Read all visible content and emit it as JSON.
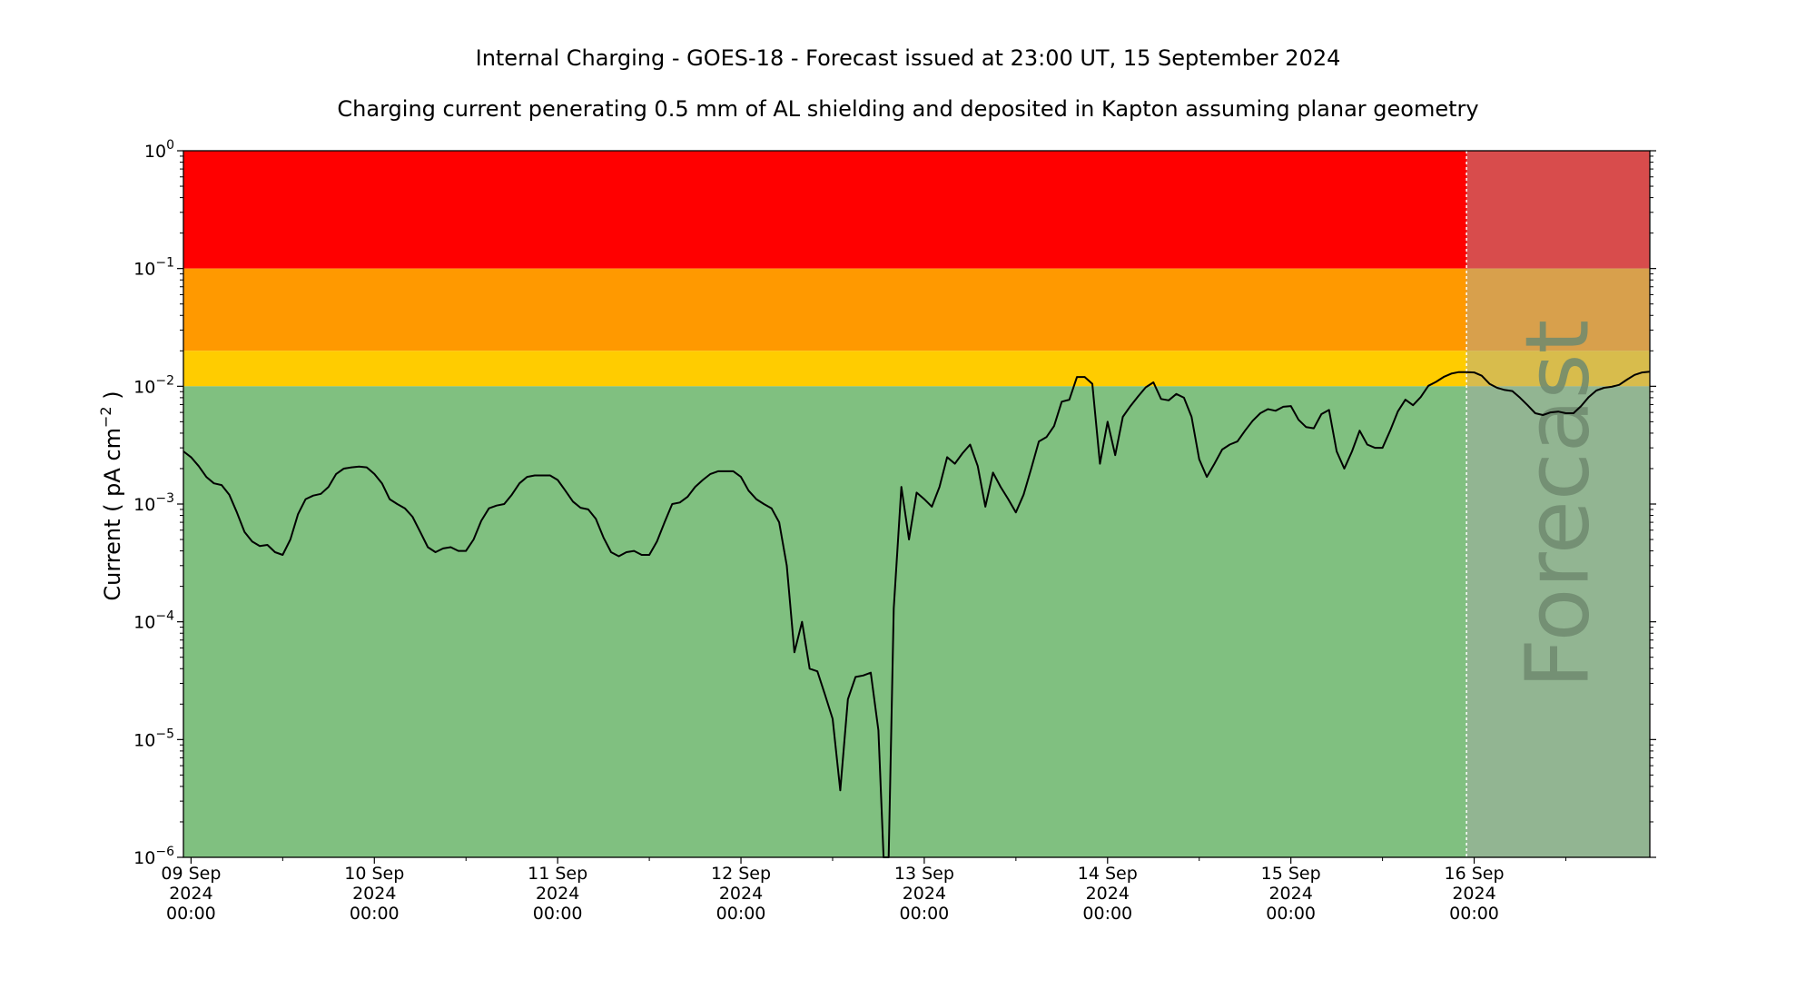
{
  "chart_data": {
    "type": "line",
    "title": "Internal Charging - GOES-18 - Forecast issued at 23:00 UT, 15 September 2024",
    "subtitle": "Charging current penerating 0.5 mm of AL shielding and deposited in Kapton assuming planar geometry",
    "ylabel": "Current ( pA cm",
    "ylabel_sup": "−2",
    "ylabel_close": " )",
    "yscale": "log",
    "ylim": [
      1e-06,
      1
    ],
    "xlim": [
      "2024-09-08 23:00",
      "2024-09-16 23:00"
    ],
    "x_ticks": [
      {
        "x": "2024-09-09 00:00",
        "day": "09 Sep",
        "year": "2024",
        "time": "00:00"
      },
      {
        "x": "2024-09-10 00:00",
        "day": "10 Sep",
        "year": "2024",
        "time": "00:00"
      },
      {
        "x": "2024-09-11 00:00",
        "day": "11 Sep",
        "year": "2024",
        "time": "00:00"
      },
      {
        "x": "2024-09-12 00:00",
        "day": "12 Sep",
        "year": "2024",
        "time": "00:00"
      },
      {
        "x": "2024-09-13 00:00",
        "day": "13 Sep",
        "year": "2024",
        "time": "00:00"
      },
      {
        "x": "2024-09-14 00:00",
        "day": "14 Sep",
        "year": "2024",
        "time": "00:00"
      },
      {
        "x": "2024-09-15 00:00",
        "day": "15 Sep",
        "year": "2024",
        "time": "00:00"
      },
      {
        "x": "2024-09-16 00:00",
        "day": "16 Sep",
        "year": "2024",
        "time": "00:00"
      }
    ],
    "y_ticks": [
      {
        "value": 1,
        "base": "10",
        "exp": "0"
      },
      {
        "value": 0.1,
        "base": "10",
        "exp": "−1"
      },
      {
        "value": 0.01,
        "base": "10",
        "exp": "−2"
      },
      {
        "value": 0.001,
        "base": "10",
        "exp": "−3"
      },
      {
        "value": 0.0001,
        "base": "10",
        "exp": "−4"
      },
      {
        "value": 1e-05,
        "base": "10",
        "exp": "−5"
      },
      {
        "value": 1e-06,
        "base": "10",
        "exp": "−6"
      }
    ],
    "bands": [
      {
        "from": 0.1,
        "to": 1,
        "color": "#ff0000"
      },
      {
        "from": 0.02,
        "to": 0.1,
        "color": "#ff9900"
      },
      {
        "from": 0.01,
        "to": 0.02,
        "color": "#ffcc00"
      },
      {
        "from": 1e-06,
        "to": 0.01,
        "color": "#80c080"
      }
    ],
    "forecast": {
      "start": "2024-09-15 23:00",
      "label": "Forecast",
      "overlay_color": "#a9a9a9",
      "overlay_opacity": 0.45
    },
    "series": [
      {
        "color": "#000000",
        "points": [
          [
            "2024-09-08 23:00",
            0.0028
          ],
          [
            "2024-09-09 00:00",
            0.0025
          ],
          [
            "2024-09-09 01:00",
            0.0021
          ],
          [
            "2024-09-09 02:00",
            0.0017
          ],
          [
            "2024-09-09 03:00",
            0.0015
          ],
          [
            "2024-09-09 04:00",
            0.00145
          ],
          [
            "2024-09-09 05:00",
            0.0012
          ],
          [
            "2024-09-09 06:00",
            0.00085
          ],
          [
            "2024-09-09 07:00",
            0.00058
          ],
          [
            "2024-09-09 08:00",
            0.00048
          ],
          [
            "2024-09-09 09:00",
            0.00044
          ],
          [
            "2024-09-09 10:00",
            0.00045
          ],
          [
            "2024-09-09 11:00",
            0.00039
          ],
          [
            "2024-09-09 12:00",
            0.00037
          ],
          [
            "2024-09-09 13:00",
            0.0005
          ],
          [
            "2024-09-09 14:00",
            0.00082
          ],
          [
            "2024-09-09 15:00",
            0.0011
          ],
          [
            "2024-09-09 16:00",
            0.00118
          ],
          [
            "2024-09-09 17:00",
            0.00122
          ],
          [
            "2024-09-09 18:00",
            0.0014
          ],
          [
            "2024-09-09 19:00",
            0.0018
          ],
          [
            "2024-09-09 20:00",
            0.002
          ],
          [
            "2024-09-09 21:00",
            0.00205
          ],
          [
            "2024-09-09 22:00",
            0.00208
          ],
          [
            "2024-09-09 23:00",
            0.00205
          ],
          [
            "2024-09-10 00:00",
            0.0018
          ],
          [
            "2024-09-10 01:00",
            0.0015
          ],
          [
            "2024-09-10 02:00",
            0.0011
          ],
          [
            "2024-09-10 03:00",
            0.001
          ],
          [
            "2024-09-10 04:00",
            0.00092
          ],
          [
            "2024-09-10 05:00",
            0.00078
          ],
          [
            "2024-09-10 06:00",
            0.00058
          ],
          [
            "2024-09-10 07:00",
            0.00043
          ],
          [
            "2024-09-10 08:00",
            0.00039
          ],
          [
            "2024-09-10 09:00",
            0.00042
          ],
          [
            "2024-09-10 10:00",
            0.00043
          ],
          [
            "2024-09-10 11:00",
            0.0004
          ],
          [
            "2024-09-10 12:00",
            0.0004
          ],
          [
            "2024-09-10 13:00",
            0.0005
          ],
          [
            "2024-09-10 14:00",
            0.00072
          ],
          [
            "2024-09-10 15:00",
            0.00092
          ],
          [
            "2024-09-10 16:00",
            0.00097
          ],
          [
            "2024-09-10 17:00",
            0.001
          ],
          [
            "2024-09-10 18:00",
            0.0012
          ],
          [
            "2024-09-10 19:00",
            0.0015
          ],
          [
            "2024-09-10 20:00",
            0.0017
          ],
          [
            "2024-09-10 21:00",
            0.00175
          ],
          [
            "2024-09-10 22:00",
            0.00175
          ],
          [
            "2024-09-10 23:00",
            0.00175
          ],
          [
            "2024-09-11 00:00",
            0.0016
          ],
          [
            "2024-09-11 01:00",
            0.0013
          ],
          [
            "2024-09-11 02:00",
            0.00105
          ],
          [
            "2024-09-11 03:00",
            0.00093
          ],
          [
            "2024-09-11 04:00",
            0.0009
          ],
          [
            "2024-09-11 05:00",
            0.00075
          ],
          [
            "2024-09-11 06:00",
            0.00052
          ],
          [
            "2024-09-11 07:00",
            0.00039
          ],
          [
            "2024-09-11 08:00",
            0.00036
          ],
          [
            "2024-09-11 09:00",
            0.00039
          ],
          [
            "2024-09-11 10:00",
            0.0004
          ],
          [
            "2024-09-11 11:00",
            0.00037
          ],
          [
            "2024-09-11 12:00",
            0.00037
          ],
          [
            "2024-09-11 13:00",
            0.00048
          ],
          [
            "2024-09-11 14:00",
            0.0007
          ],
          [
            "2024-09-11 15:00",
            0.001
          ],
          [
            "2024-09-11 16:00",
            0.00103
          ],
          [
            "2024-09-11 17:00",
            0.00115
          ],
          [
            "2024-09-11 18:00",
            0.0014
          ],
          [
            "2024-09-11 19:00",
            0.0016
          ],
          [
            "2024-09-11 20:00",
            0.0018
          ],
          [
            "2024-09-11 21:00",
            0.0019
          ],
          [
            "2024-09-11 22:00",
            0.0019
          ],
          [
            "2024-09-11 23:00",
            0.0019
          ],
          [
            "2024-09-12 00:00",
            0.0017
          ],
          [
            "2024-09-12 01:00",
            0.0013
          ],
          [
            "2024-09-12 02:00",
            0.0011
          ],
          [
            "2024-09-12 03:00",
            0.001
          ],
          [
            "2024-09-12 04:00",
            0.00092
          ],
          [
            "2024-09-12 05:00",
            0.0007
          ],
          [
            "2024-09-12 06:00",
            0.0003
          ],
          [
            "2024-09-12 07:00",
            5.5e-05
          ],
          [
            "2024-09-12 08:00",
            0.0001
          ],
          [
            "2024-09-12 09:00",
            4e-05
          ],
          [
            "2024-09-12 10:00",
            3.8e-05
          ],
          [
            "2024-09-12 11:00",
            2.4e-05
          ],
          [
            "2024-09-12 12:00",
            1.5e-05
          ],
          [
            "2024-09-12 13:00",
            3.7e-06
          ],
          [
            "2024-09-12 14:00",
            2.2e-05
          ],
          [
            "2024-09-12 15:00",
            3.4e-05
          ],
          [
            "2024-09-12 16:00",
            3.5e-05
          ],
          [
            "2024-09-12 17:00",
            3.7e-05
          ],
          [
            "2024-09-12 18:00",
            1.2e-05
          ],
          [
            "2024-09-12 18:40",
            1e-06
          ],
          [
            "2024-09-12 19:20",
            1e-06
          ],
          [
            "2024-09-12 20:00",
            0.00013
          ],
          [
            "2024-09-12 21:00",
            0.0014
          ],
          [
            "2024-09-12 22:00",
            0.0005
          ],
          [
            "2024-09-12 23:00",
            0.00125
          ],
          [
            "2024-09-13 00:00",
            0.0011
          ],
          [
            "2024-09-13 01:00",
            0.00095
          ],
          [
            "2024-09-13 02:00",
            0.0014
          ],
          [
            "2024-09-13 03:00",
            0.0025
          ],
          [
            "2024-09-13 04:00",
            0.0022
          ],
          [
            "2024-09-13 05:00",
            0.0027
          ],
          [
            "2024-09-13 06:00",
            0.0032
          ],
          [
            "2024-09-13 07:00",
            0.0021
          ],
          [
            "2024-09-13 08:00",
            0.00095
          ],
          [
            "2024-09-13 09:00",
            0.00185
          ],
          [
            "2024-09-13 10:00",
            0.0014
          ],
          [
            "2024-09-13 11:00",
            0.0011
          ],
          [
            "2024-09-13 12:00",
            0.00085
          ],
          [
            "2024-09-13 13:00",
            0.0012
          ],
          [
            "2024-09-13 14:00",
            0.002
          ],
          [
            "2024-09-13 15:00",
            0.0034
          ],
          [
            "2024-09-13 16:00",
            0.0037
          ],
          [
            "2024-09-13 17:00",
            0.0046
          ],
          [
            "2024-09-13 18:00",
            0.0074
          ],
          [
            "2024-09-13 19:00",
            0.0077
          ],
          [
            "2024-09-13 20:00",
            0.012
          ],
          [
            "2024-09-13 21:00",
            0.012
          ],
          [
            "2024-09-13 22:00",
            0.0105
          ],
          [
            "2024-09-13 23:00",
            0.0022
          ],
          [
            "2024-09-14 00:00",
            0.005
          ],
          [
            "2024-09-14 01:00",
            0.0026
          ],
          [
            "2024-09-14 02:00",
            0.0055
          ],
          [
            "2024-09-14 03:00",
            0.0068
          ],
          [
            "2024-09-14 04:00",
            0.0082
          ],
          [
            "2024-09-14 05:00",
            0.0098
          ],
          [
            "2024-09-14 06:00",
            0.0108
          ],
          [
            "2024-09-14 07:00",
            0.0078
          ],
          [
            "2024-09-14 08:00",
            0.0076
          ],
          [
            "2024-09-14 09:00",
            0.0086
          ],
          [
            "2024-09-14 10:00",
            0.008
          ],
          [
            "2024-09-14 11:00",
            0.0055
          ],
          [
            "2024-09-14 12:00",
            0.0024
          ],
          [
            "2024-09-14 13:00",
            0.0017
          ],
          [
            "2024-09-14 14:00",
            0.0022
          ],
          [
            "2024-09-14 15:00",
            0.0029
          ],
          [
            "2024-09-14 16:00",
            0.0032
          ],
          [
            "2024-09-14 17:00",
            0.0034
          ],
          [
            "2024-09-14 18:00",
            0.0042
          ],
          [
            "2024-09-14 19:00",
            0.0051
          ],
          [
            "2024-09-14 20:00",
            0.0059
          ],
          [
            "2024-09-14 21:00",
            0.0064
          ],
          [
            "2024-09-14 22:00",
            0.0062
          ],
          [
            "2024-09-14 23:00",
            0.0067
          ],
          [
            "2024-09-15 00:00",
            0.0068
          ],
          [
            "2024-09-15 01:00",
            0.0052
          ],
          [
            "2024-09-15 02:00",
            0.0045
          ],
          [
            "2024-09-15 03:00",
            0.0044
          ],
          [
            "2024-09-15 04:00",
            0.0058
          ],
          [
            "2024-09-15 05:00",
            0.0063
          ],
          [
            "2024-09-15 06:00",
            0.0028
          ],
          [
            "2024-09-15 07:00",
            0.002
          ],
          [
            "2024-09-15 08:00",
            0.0028
          ],
          [
            "2024-09-15 09:00",
            0.0042
          ],
          [
            "2024-09-15 10:00",
            0.0032
          ],
          [
            "2024-09-15 11:00",
            0.003
          ],
          [
            "2024-09-15 12:00",
            0.003
          ],
          [
            "2024-09-15 13:00",
            0.0042
          ],
          [
            "2024-09-15 14:00",
            0.0061
          ],
          [
            "2024-09-15 15:00",
            0.0077
          ],
          [
            "2024-09-15 16:00",
            0.0069
          ],
          [
            "2024-09-15 17:00",
            0.0081
          ],
          [
            "2024-09-15 18:00",
            0.0101
          ],
          [
            "2024-09-15 19:00",
            0.0109
          ],
          [
            "2024-09-15 20:00",
            0.012
          ],
          [
            "2024-09-15 21:00",
            0.0128
          ],
          [
            "2024-09-15 22:00",
            0.0132
          ],
          [
            "2024-09-15 23:00",
            0.0132
          ],
          [
            "2024-09-16 00:00",
            0.0131
          ],
          [
            "2024-09-16 01:00",
            0.0123
          ],
          [
            "2024-09-16 02:00",
            0.0105
          ],
          [
            "2024-09-16 03:00",
            0.0097
          ],
          [
            "2024-09-16 04:00",
            0.0093
          ],
          [
            "2024-09-16 05:00",
            0.0091
          ],
          [
            "2024-09-16 06:00",
            0.008
          ],
          [
            "2024-09-16 07:00",
            0.0069
          ],
          [
            "2024-09-16 08:00",
            0.0059
          ],
          [
            "2024-09-16 09:00",
            0.0057
          ],
          [
            "2024-09-16 10:00",
            0.006
          ],
          [
            "2024-09-16 11:00",
            0.0061
          ],
          [
            "2024-09-16 12:00",
            0.0059
          ],
          [
            "2024-09-16 13:00",
            0.0059
          ],
          [
            "2024-09-16 14:00",
            0.0068
          ],
          [
            "2024-09-16 15:00",
            0.0081
          ],
          [
            "2024-09-16 16:00",
            0.0092
          ],
          [
            "2024-09-16 17:00",
            0.0097
          ],
          [
            "2024-09-16 18:00",
            0.0099
          ],
          [
            "2024-09-16 19:00",
            0.0103
          ],
          [
            "2024-09-16 20:00",
            0.0114
          ],
          [
            "2024-09-16 21:00",
            0.0125
          ],
          [
            "2024-09-16 22:00",
            0.0131
          ],
          [
            "2024-09-16 23:00",
            0.0133
          ]
        ]
      }
    ]
  }
}
